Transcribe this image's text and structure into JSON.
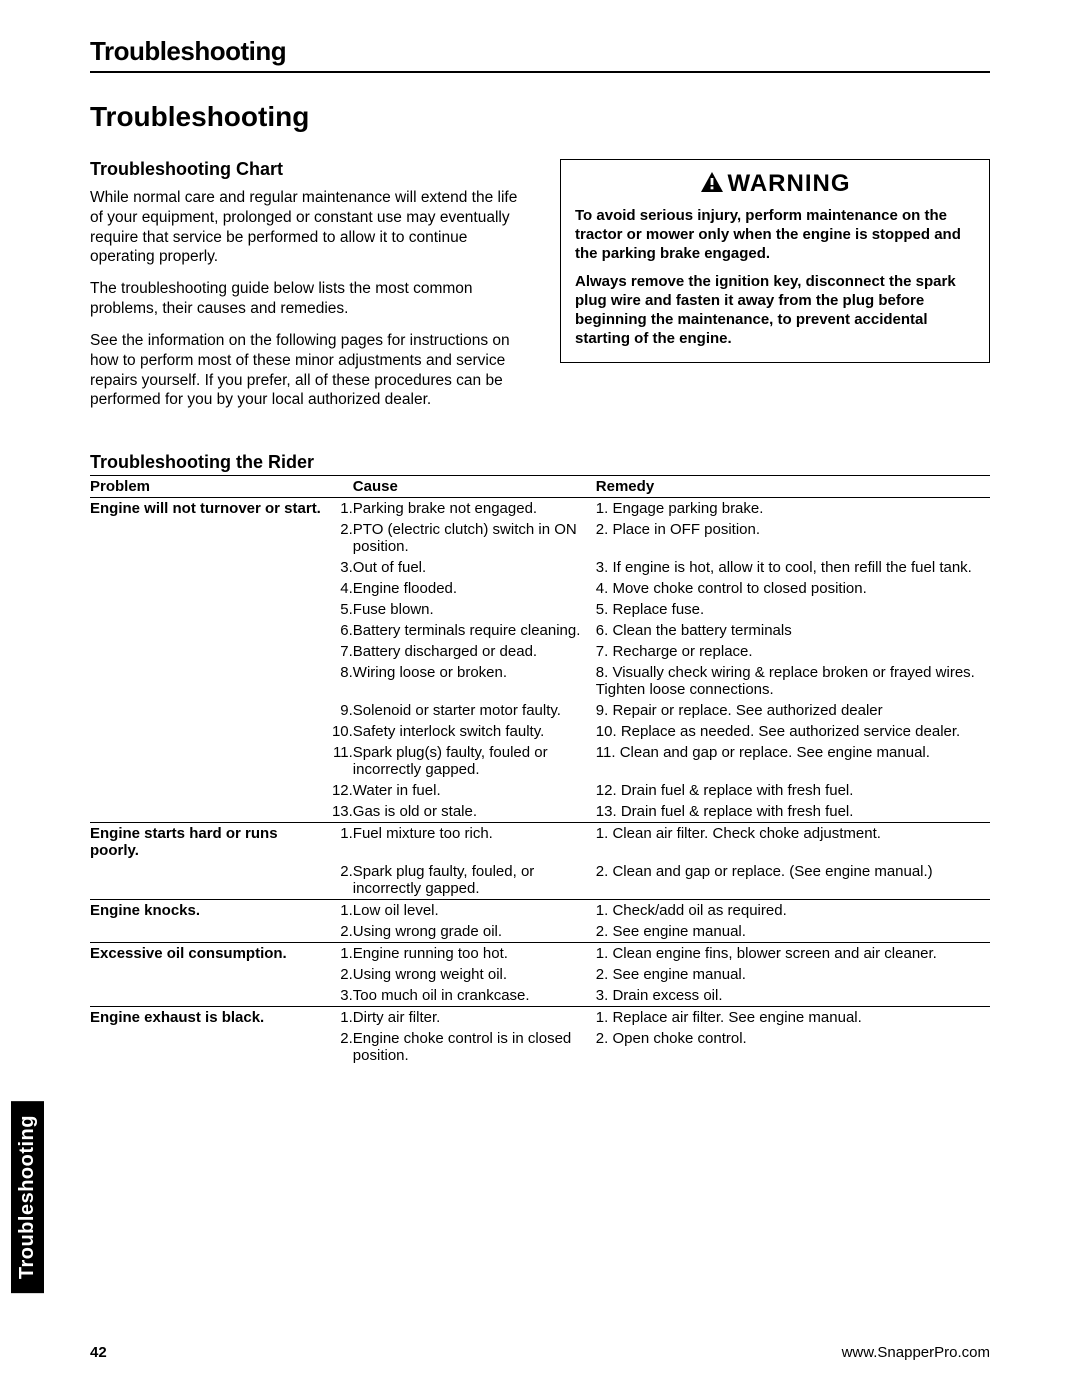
{
  "section_header": "Troubleshooting",
  "main_title": "Troubleshooting",
  "chart_heading": "Troubleshooting Chart",
  "intro_paragraphs": [
    "While normal care and regular maintenance will extend the life of your equipment, prolonged or constant use may eventually require that service be performed to allow it to continue operating properly.",
    "The troubleshooting guide below lists the most common problems, their causes and remedies.",
    "See the information on the following pages for instructions on how to perform most of these minor adjustments and service repairs yourself. If you prefer, all of these procedures can be performed for you by your local authorized dealer."
  ],
  "warning": {
    "title": "WARNING",
    "paragraphs": [
      "To avoid serious injury, perform maintenance on the tractor or mower only when the engine is stopped and the parking brake engaged.",
      "Always remove the ignition key, disconnect the spark plug wire and fasten it away from the plug before beginning the maintenance, to prevent accidental starting of the engine."
    ]
  },
  "table_title": "Troubleshooting the Rider",
  "columns": {
    "problem": "Problem",
    "cause": "Cause",
    "remedy": "Remedy"
  },
  "rows": [
    {
      "problem": "Engine will not turnover or start.",
      "items": [
        {
          "n": "1.",
          "cause": "Parking brake not engaged.",
          "remedy": "1. Engage parking brake."
        },
        {
          "n": "2.",
          "cause": "PTO (electric clutch) switch in ON position.",
          "remedy": "2. Place in OFF position."
        },
        {
          "n": "3.",
          "cause": "Out of fuel.",
          "remedy": "3. If engine is hot, allow it to cool, then refill the fuel tank."
        },
        {
          "n": "4.",
          "cause": "Engine flooded.",
          "remedy": "4. Move choke control to closed position."
        },
        {
          "n": "5.",
          "cause": "Fuse blown.",
          "remedy": "5. Replace fuse."
        },
        {
          "n": "6.",
          "cause": "Battery terminals require cleaning.",
          "remedy": "6. Clean the battery terminals"
        },
        {
          "n": "7.",
          "cause": "Battery discharged or dead.",
          "remedy": "7. Recharge or replace."
        },
        {
          "n": "8.",
          "cause": "Wiring loose or broken.",
          "remedy": "8. Visually check wiring & replace broken or frayed wires. Tighten loose connections."
        },
        {
          "n": "9.",
          "cause": "Solenoid or starter motor faulty.",
          "remedy": "9. Repair or replace.  See authorized dealer"
        },
        {
          "n": "10.",
          "cause": "Safety interlock switch faulty.",
          "remedy": "10. Replace as needed. See authorized service dealer."
        },
        {
          "n": "11.",
          "cause": "Spark plug(s) faulty, fouled or incorrectly gapped.",
          "remedy": "11. Clean and gap or replace. See engine manual."
        },
        {
          "n": "12.",
          "cause": "Water in fuel.",
          "remedy": "12. Drain fuel & replace with fresh fuel."
        },
        {
          "n": "13.",
          "cause": "Gas is old or stale.",
          "remedy": "13. Drain fuel & replace with fresh fuel."
        }
      ]
    },
    {
      "problem": "Engine starts hard or runs poorly.",
      "items": [
        {
          "n": "1.",
          "cause": "Fuel mixture too rich.",
          "remedy": "1. Clean air filter. Check choke adjustment."
        },
        {
          "n": "2.",
          "cause": "Spark plug faulty, fouled, or incorrectly gapped.",
          "remedy": "2. Clean and gap or replace. (See engine manual.)"
        }
      ]
    },
    {
      "problem": "Engine knocks.",
      "items": [
        {
          "n": "1.",
          "cause": "Low oil level.",
          "remedy": "1. Check/add oil as required."
        },
        {
          "n": "2.",
          "cause": "Using wrong grade oil.",
          "remedy": "2. See engine manual."
        }
      ]
    },
    {
      "problem": "Excessive oil consumption.",
      "items": [
        {
          "n": "1.",
          "cause": "Engine running too hot.",
          "remedy": "1. Clean engine fins, blower screen and air cleaner."
        },
        {
          "n": "2.",
          "cause": "Using wrong weight oil.",
          "remedy": "2. See engine manual."
        },
        {
          "n": "3.",
          "cause": "Too much oil in crankcase.",
          "remedy": "3. Drain excess oil."
        }
      ]
    },
    {
      "problem": "Engine exhaust is black.",
      "items": [
        {
          "n": "1.",
          "cause": "Dirty air filter.",
          "remedy": "1. Replace air filter. See engine manual."
        },
        {
          "n": "2.",
          "cause": "Engine choke control is in closed position.",
          "remedy": "2. Open choke control."
        }
      ]
    }
  ],
  "side_tab": "Troubleshooting",
  "footer": {
    "page": "42",
    "url": "www.SnapperPro.com"
  }
}
